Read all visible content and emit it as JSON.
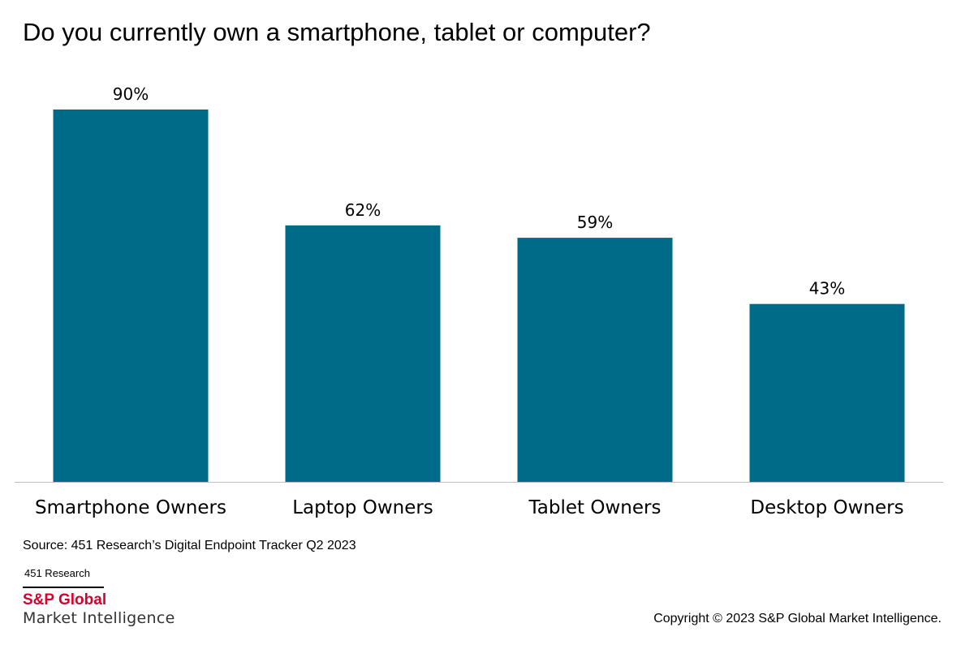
{
  "title": "Do you currently own a smartphone, tablet or computer?",
  "colors": {
    "bar": "#006b88",
    "axis": "#bfbfbf",
    "brand_red": "#d6002a"
  },
  "chart_data": {
    "type": "bar",
    "title": "Do you currently own a smartphone, tablet or computer?",
    "categories": [
      "Smartphone Owners",
      "Laptop Owners",
      "Tablet Owners",
      "Desktop Owners"
    ],
    "values": [
      90,
      62,
      59,
      43
    ],
    "value_labels": [
      "90%",
      "62%",
      "59%",
      "43%"
    ],
    "unit": "%",
    "ylim": [
      0,
      100
    ],
    "grid": false,
    "xlabel": "",
    "ylabel": ""
  },
  "footer": {
    "source": "Source: 451 Research’s Digital Endpoint Tracker Q2 2023",
    "brand_small": "451 Research",
    "brand_name": "S&P Global",
    "brand_sub": "Market Intelligence",
    "copyright": "Copyright © 2023 S&P Global Market Intelligence."
  }
}
